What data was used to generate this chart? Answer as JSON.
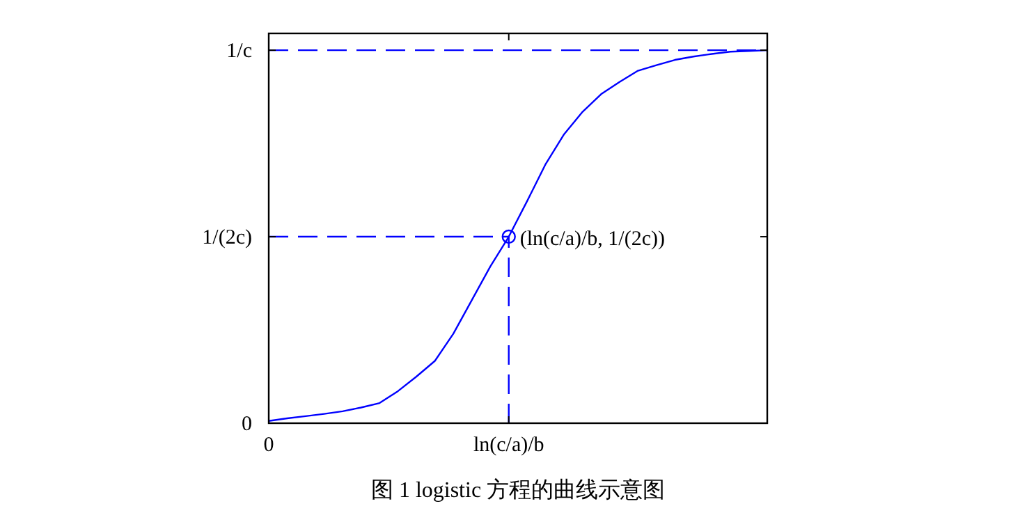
{
  "chart_data": {
    "type": "line",
    "annotations": [
      {
        "text": "(ln(c/a)/b, 1/(2c))",
        "x": "ln(c/a)/b",
        "y": 0.5
      },
      "图 1 logistic 方程的曲线示意图"
    ],
    "categories": [
      "0",
      null,
      null,
      null,
      null,
      null,
      null,
      null,
      null,
      null,
      null,
      null,
      null,
      "ln(c/a)/b",
      null,
      null,
      null,
      null,
      null,
      null,
      null,
      null,
      null,
      null,
      null,
      null,
      null,
      null
    ],
    "series": [
      {
        "color": "#0000ff",
        "values": [
          0.006,
          0.013,
          0.019,
          0.025,
          0.032,
          0.042,
          0.054,
          0.086,
          0.125,
          0.167,
          0.24,
          0.33,
          0.42,
          0.5,
          0.596,
          0.695,
          0.775,
          0.835,
          0.882,
          0.915,
          0.945,
          0.96,
          0.974,
          0.983,
          0.99,
          0.996,
          0.998,
          1.0
        ]
      },
      {
        "type": "line",
        "color": "#0000ff",
        "line_style": "dashed",
        "values": [
          0.5,
          0.5,
          0.5,
          0.5,
          0.5,
          0.5,
          0.5,
          0.5,
          0.5,
          0.5,
          0.5,
          0.5,
          0.5,
          0.5,
          null,
          null,
          null,
          null,
          null,
          null,
          null,
          null,
          null,
          null,
          null,
          null,
          null,
          null
        ]
      },
      {
        "type": "line",
        "color": "#0000ff",
        "line_style": "dashed",
        "x": [
          "ln(c/a)/b",
          "ln(c/a)/b"
        ],
        "values": [
          0,
          0.5
        ]
      },
      {
        "type": "scatter",
        "color": "#0000ff",
        "marker": "circle",
        "x": [
          "ln(c/a)/b"
        ],
        "values": [
          0.5
        ]
      }
    ],
    "ref_lines": [
      {
        "axis": "y",
        "value": 1,
        "color": "#0000ff",
        "line_style": "dashed"
      }
    ],
    "ylim": [
      0,
      1.045
    ],
    "yticks": [
      0,
      {
        "value": 0.5,
        "label": "1/(2c)"
      },
      {
        "value": 1,
        "label": "1/c"
      }
    ]
  }
}
